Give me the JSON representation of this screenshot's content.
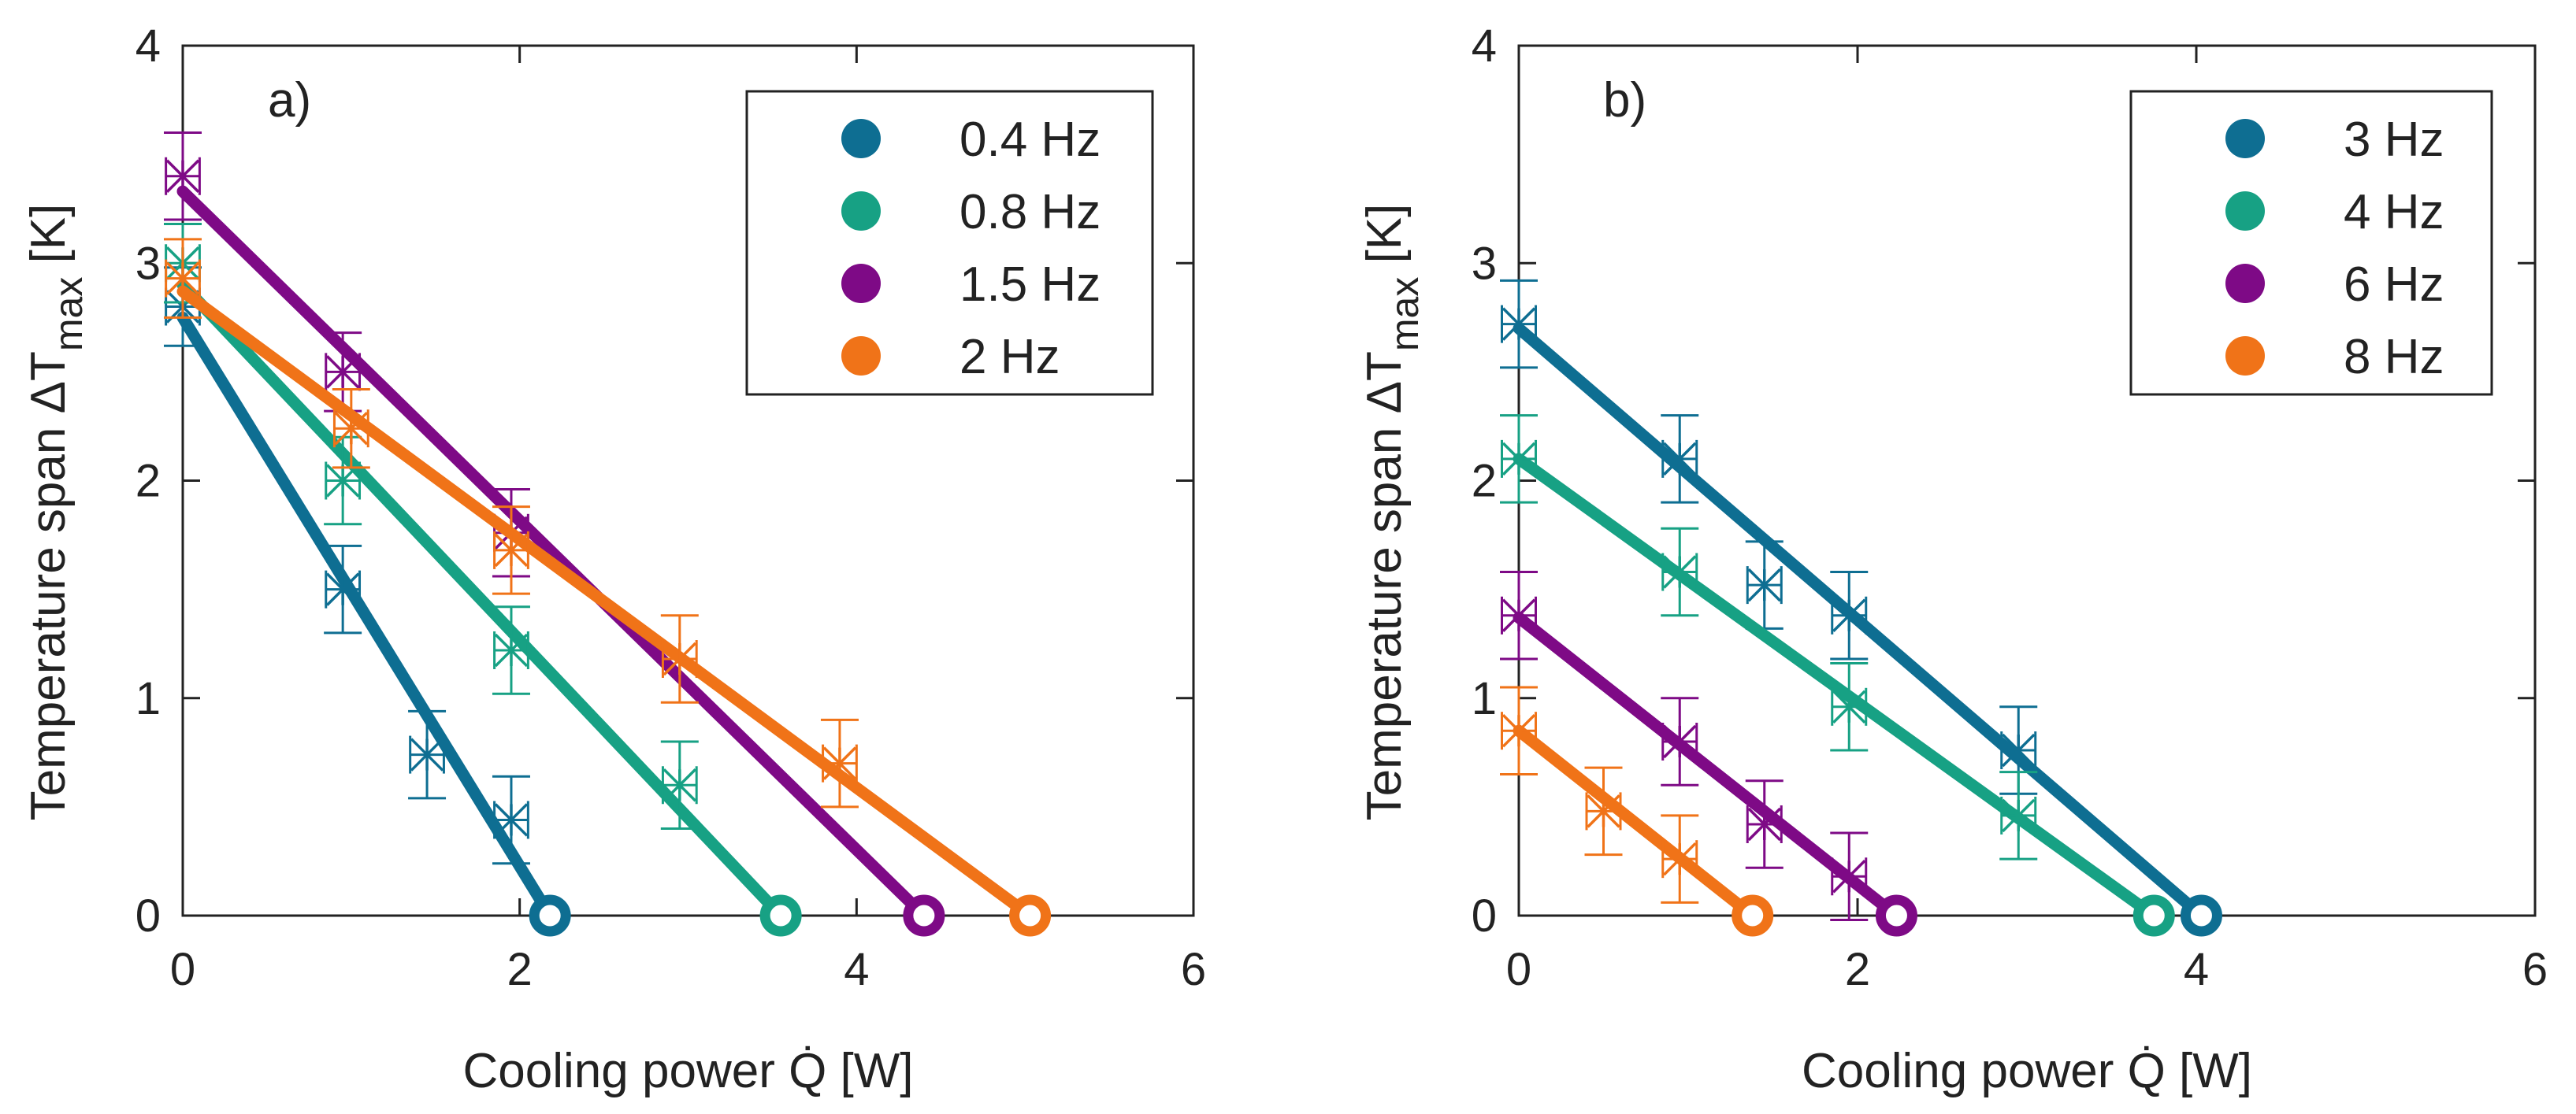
{
  "colors": {
    "axis": "#222222",
    "blue": "#0E6E92",
    "green": "#17A184",
    "purple": "#7E0A86",
    "orange": "#F07318"
  },
  "chart_data": [
    {
      "type": "line",
      "panel_label": "a)",
      "xlabel": "Cooling power Q̇ [W]",
      "ylabel": "Temperature span  ΔT",
      "ylabel_subscript": "max",
      "ylabel_unit": "[K]",
      "xlim": [
        0,
        6
      ],
      "ylim": [
        0,
        4
      ],
      "xticks": [
        0,
        2,
        4,
        6
      ],
      "xtick_labels": [
        "0",
        "2",
        "4",
        "6"
      ],
      "yticks": [
        0,
        1,
        2,
        3,
        4
      ],
      "ytick_labels": [
        "0",
        "1",
        "2",
        "3",
        "4"
      ],
      "legend_position": "top-right",
      "series": [
        {
          "name": "0.4 Hz",
          "color": "#0E6E92",
          "fit": [
            [
              0,
              2.75
            ],
            [
              2.18,
              0
            ]
          ],
          "endpoint": [
            2.18,
            0
          ],
          "points": [
            [
              0,
              2.8,
              0.18
            ],
            [
              0.95,
              1.5,
              0.2
            ],
            [
              1.45,
              0.74,
              0.2
            ],
            [
              1.95,
              0.44,
              0.2
            ]
          ]
        },
        {
          "name": "0.8 Hz",
          "color": "#17A184",
          "fit": [
            [
              0,
              2.9
            ],
            [
              3.55,
              0
            ]
          ],
          "endpoint": [
            3.55,
            0
          ],
          "points": [
            [
              0,
              3.0,
              0.18
            ],
            [
              0.95,
              2.0,
              0.2
            ],
            [
              1.95,
              1.22,
              0.2
            ],
            [
              2.95,
              0.6,
              0.2
            ]
          ]
        },
        {
          "name": "1.5 Hz",
          "color": "#7E0A86",
          "fit": [
            [
              0,
              3.33
            ],
            [
              4.4,
              0
            ]
          ],
          "endpoint": [
            4.4,
            0
          ],
          "points": [
            [
              0,
              3.4,
              0.2
            ],
            [
              0.95,
              2.5,
              0.18
            ],
            [
              1.95,
              1.76,
              0.2
            ]
          ]
        },
        {
          "name": "2 Hz",
          "color": "#F07318",
          "fit": [
            [
              0,
              2.87
            ],
            [
              5.03,
              0
            ]
          ],
          "endpoint": [
            5.03,
            0
          ],
          "points": [
            [
              0,
              2.93,
              0.18
            ],
            [
              1.0,
              2.24,
              0.18
            ],
            [
              1.95,
              1.68,
              0.2
            ],
            [
              2.95,
              1.18,
              0.2
            ],
            [
              3.9,
              0.7,
              0.2
            ]
          ]
        }
      ]
    },
    {
      "type": "line",
      "panel_label": "b)",
      "xlabel": "Cooling power Q̇ [W]",
      "ylabel": "Temperature span  ΔT",
      "ylabel_subscript": "max",
      "ylabel_unit": "[K]",
      "xlim": [
        0,
        6
      ],
      "ylim": [
        0,
        4
      ],
      "xticks": [
        0,
        2,
        4,
        6
      ],
      "xtick_labels": [
        "0",
        "2",
        "4",
        "6"
      ],
      "yticks": [
        0,
        1,
        2,
        3,
        4
      ],
      "ytick_labels": [
        "0",
        "1",
        "2",
        "3",
        "4"
      ],
      "legend_position": "top-right",
      "series": [
        {
          "name": "3 Hz",
          "color": "#0E6E92",
          "fit": [
            [
              0,
              2.7
            ],
            [
              4.03,
              0
            ]
          ],
          "endpoint": [
            4.03,
            0
          ],
          "points": [
            [
              0,
              2.72,
              0.2
            ],
            [
              0.95,
              2.1,
              0.2
            ],
            [
              1.45,
              1.52,
              0.2
            ],
            [
              1.95,
              1.38,
              0.2
            ],
            [
              2.95,
              0.76,
              0.2
            ]
          ]
        },
        {
          "name": "4 Hz",
          "color": "#17A184",
          "fit": [
            [
              0,
              2.1
            ],
            [
              3.75,
              0
            ]
          ],
          "endpoint": [
            3.75,
            0
          ],
          "points": [
            [
              0,
              2.1,
              0.2
            ],
            [
              0.95,
              1.58,
              0.2
            ],
            [
              1.95,
              0.96,
              0.2
            ],
            [
              2.95,
              0.46,
              0.2
            ]
          ]
        },
        {
          "name": "6 Hz",
          "color": "#7E0A86",
          "fit": [
            [
              0,
              1.37
            ],
            [
              2.23,
              0
            ]
          ],
          "endpoint": [
            2.23,
            0
          ],
          "points": [
            [
              0,
              1.38,
              0.2
            ],
            [
              0.95,
              0.8,
              0.2
            ],
            [
              1.45,
              0.42,
              0.2
            ],
            [
              1.95,
              0.18,
              0.2
            ]
          ]
        },
        {
          "name": "8 Hz",
          "color": "#F07318",
          "fit": [
            [
              0,
              0.85
            ],
            [
              1.38,
              0
            ]
          ],
          "endpoint": [
            1.38,
            0
          ],
          "points": [
            [
              0,
              0.85,
              0.2
            ],
            [
              0.5,
              0.48,
              0.2
            ],
            [
              0.95,
              0.26,
              0.2
            ]
          ]
        }
      ]
    }
  ]
}
